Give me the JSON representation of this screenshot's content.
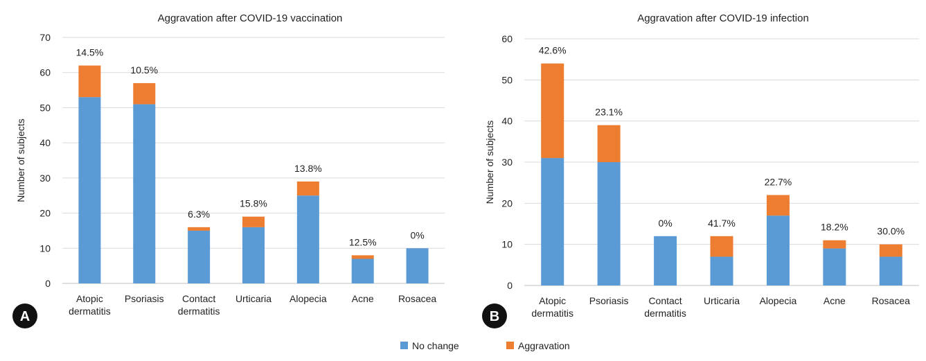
{
  "chart_data": [
    {
      "type": "bar",
      "stacked": true,
      "panel_label": "A",
      "title": "Aggravation after COVID-19 vaccination",
      "xlabel": "",
      "ylabel": "Number of subjects",
      "ylim": [
        0,
        70
      ],
      "yticks": [
        0,
        10,
        20,
        30,
        40,
        50,
        60,
        70
      ],
      "grid": true,
      "categories": [
        [
          "Atopic",
          "dermatitis"
        ],
        [
          "Psoriasis"
        ],
        [
          "Contact",
          "dermatitis"
        ],
        [
          "Urticaria"
        ],
        [
          "Alopecia"
        ],
        [
          "Acne"
        ],
        [
          "Rosacea"
        ]
      ],
      "series": [
        {
          "name": "No change",
          "color": "#5b9bd5",
          "values": [
            53,
            51,
            15,
            16,
            25,
            7,
            10
          ]
        },
        {
          "name": "Aggravation",
          "color": "#ed7d31",
          "values": [
            9,
            6,
            1,
            3,
            4,
            1,
            0
          ]
        }
      ],
      "labels": [
        "14.5%",
        "10.5%",
        "6.3%",
        "15.8%",
        "13.8%",
        "12.5%",
        "0%"
      ]
    },
    {
      "type": "bar",
      "stacked": true,
      "panel_label": "B",
      "title": "Aggravation after COVID-19 infection",
      "xlabel": "",
      "ylabel": "Number of subjects",
      "ylim": [
        0,
        60
      ],
      "yticks": [
        0,
        10,
        20,
        30,
        40,
        50,
        60
      ],
      "grid": true,
      "categories": [
        [
          "Atopic",
          "dermatitis"
        ],
        [
          "Psoriasis"
        ],
        [
          "Contact",
          "dermatitis"
        ],
        [
          "Urticaria"
        ],
        [
          "Alopecia"
        ],
        [
          "Acne"
        ],
        [
          "Rosacea"
        ]
      ],
      "series": [
        {
          "name": "No change",
          "color": "#5b9bd5",
          "values": [
            31,
            30,
            12,
            7,
            17,
            9,
            7
          ]
        },
        {
          "name": "Aggravation",
          "color": "#ed7d31",
          "values": [
            23,
            9,
            0,
            5,
            5,
            2,
            3
          ]
        }
      ],
      "labels": [
        "42.6%",
        "23.1%",
        "0%",
        "41.7%",
        "22.7%",
        "18.2%",
        "30.0%"
      ]
    }
  ],
  "legend": {
    "placement": "bottom-center",
    "items": [
      {
        "label": "No change",
        "color": "#5b9bd5"
      },
      {
        "label": "Aggravation",
        "color": "#ed7d31"
      }
    ]
  }
}
